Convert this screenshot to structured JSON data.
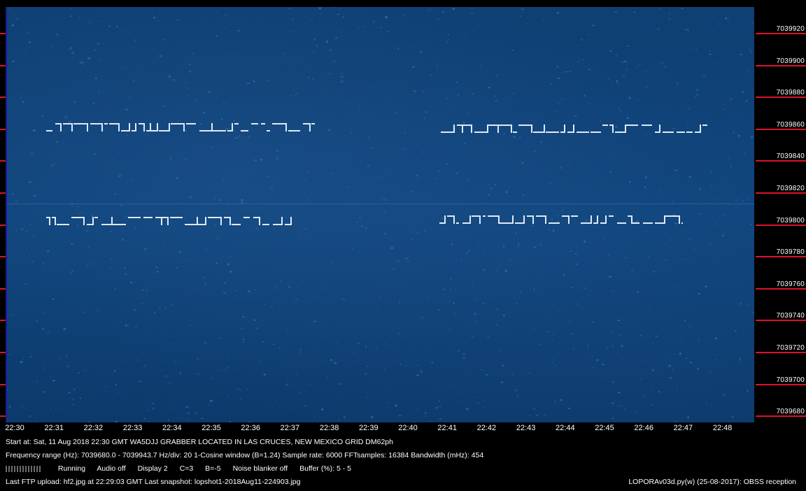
{
  "frequency_axis": {
    "labels": [
      "7039920",
      "7039900",
      "7039880",
      "7039860",
      "7039840",
      "7039820",
      "7039800",
      "7039780",
      "7039760",
      "7039740",
      "7039720",
      "7039700",
      "7039680"
    ],
    "highlight_color": "#e0102a"
  },
  "time_axis": {
    "labels": [
      "22:30",
      "22:31",
      "22:32",
      "22:33",
      "22:34",
      "22:35",
      "22:36",
      "22:37",
      "22:38",
      "22:39",
      "22:40",
      "22:41",
      "22:42",
      "22:43",
      "22:44",
      "22:45",
      "22:46",
      "22:47",
      "22:48"
    ]
  },
  "info": {
    "line1": "Start at: Sat, 11 Aug 2018 22:30 GMT    WA5DJJ GRABBER LOCATED IN LAS CRUCES, NEW MEXICO GRID DM62ph",
    "line2": "Frequency range (Hz): 7039680.0 - 7039943.7    Hz/div: 20    1-Cosine window (B=1.24)    Sample rate: 6000    FFTsamples: 16384    Bandwidth (mHz): 454",
    "status": {
      "running": "Running",
      "audio": "Audio off",
      "display": "Display 2",
      "c": "C=3",
      "b": "B=-5",
      "noise_blanker": "Noise blanker off",
      "buffer": "Buffer (%): 5 - 5"
    },
    "line4_left": "Last FTP upload: hf2.jpg at 22:29:03 GMT    Last snapshot: lopshot1-2018Aug11-224903.jpg",
    "line4_right": "LOPORAv03d.py(w) (25-08-2017): OBSS reception"
  },
  "colors": {
    "background": "#0e447b",
    "signal": "#dfe9f5",
    "tick": "#e0102a"
  }
}
